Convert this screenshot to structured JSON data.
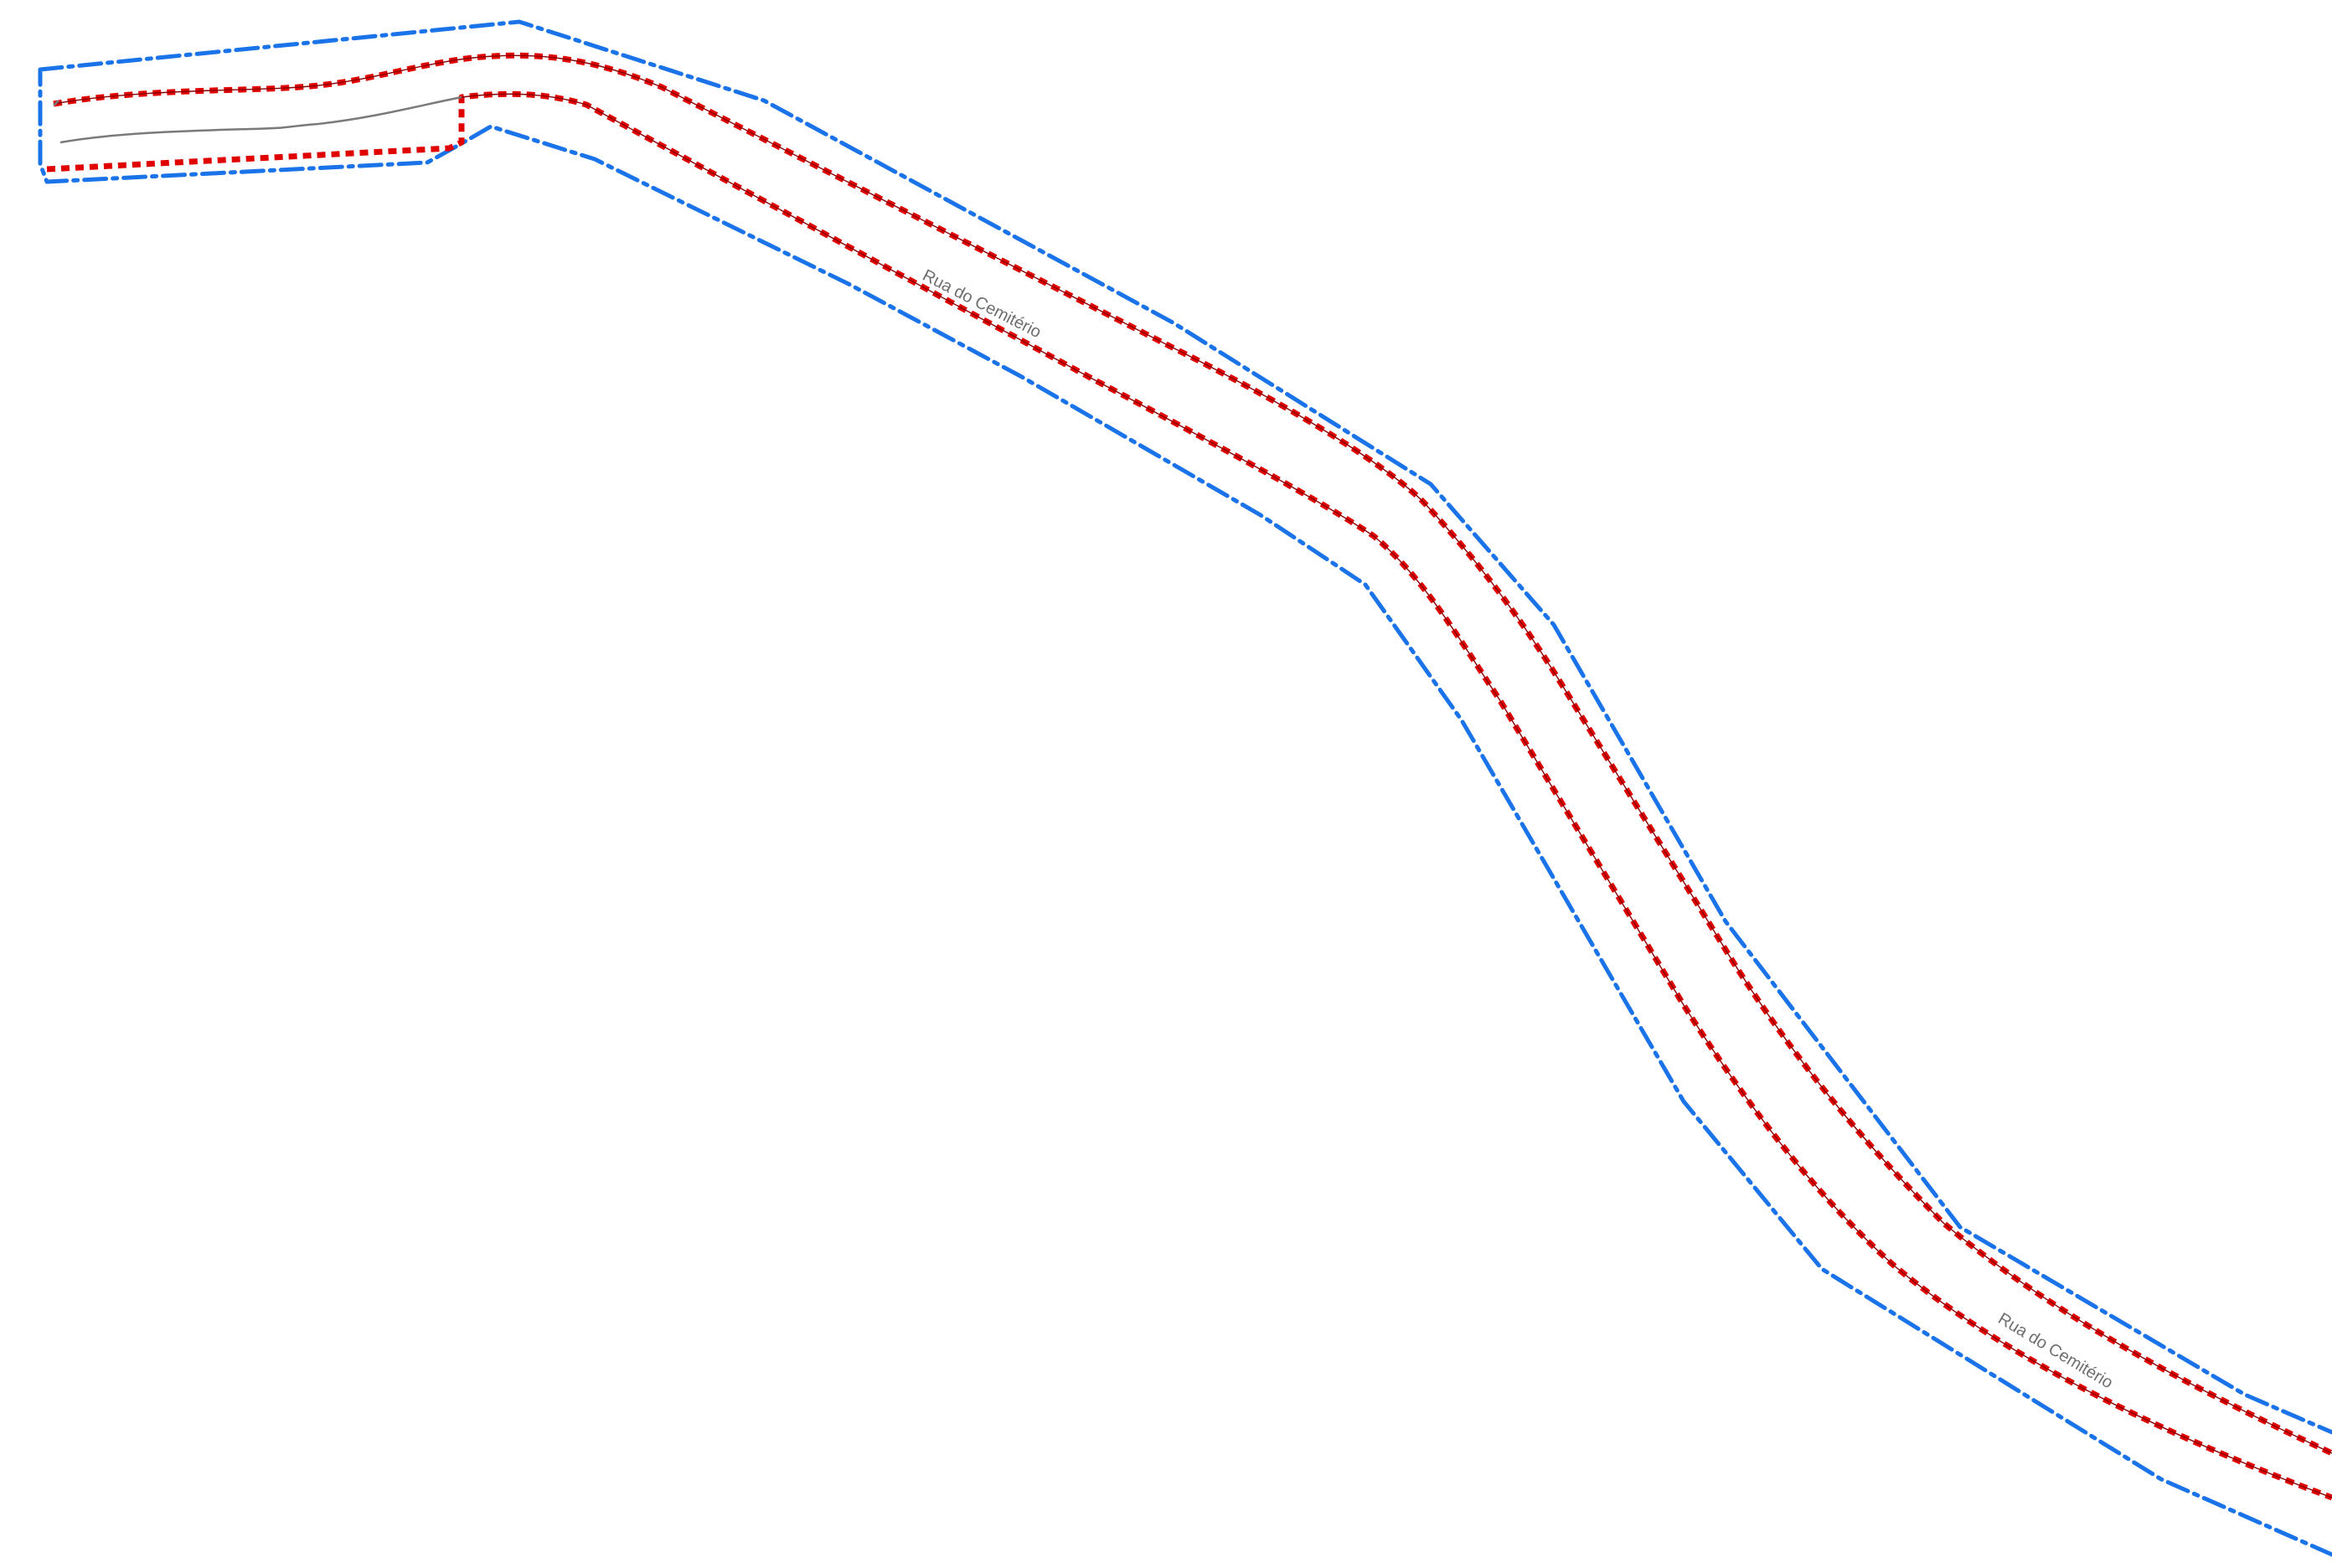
{
  "map": {
    "colors": {
      "buffer": "#1a73e8",
      "road_edge": "#e00000",
      "centerline": "#7a7a7a",
      "label": "#6e6e6e",
      "background": "#ffffff"
    },
    "labels": {
      "street_upper": "Rua do Cemitério",
      "street_lower": "Rua do Cemitério"
    }
  }
}
